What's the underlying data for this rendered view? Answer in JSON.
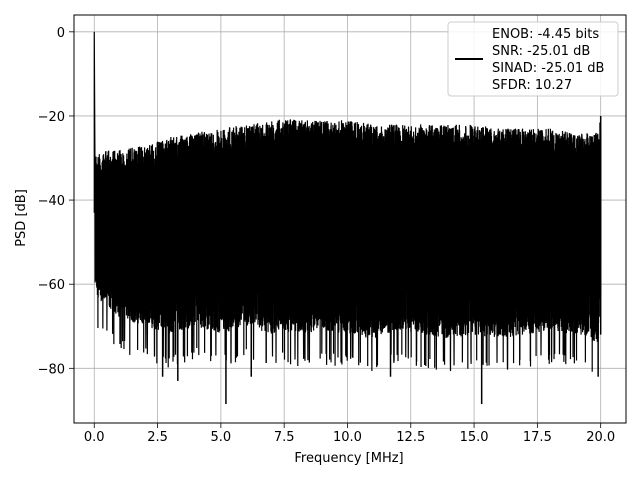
{
  "chart_data": {
    "type": "line",
    "title": "",
    "xlabel": "Frequency [MHz]",
    "ylabel": "PSD [dB]",
    "xlim": [
      -0.8,
      21.0
    ],
    "ylim": [
      -93,
      4
    ],
    "xticks": [
      0.0,
      2.5,
      5.0,
      7.5,
      10.0,
      12.5,
      15.0,
      17.5,
      20.0
    ],
    "xtick_labels": [
      "0.0",
      "2.5",
      "5.0",
      "7.5",
      "10.0",
      "12.5",
      "15.0",
      "17.5",
      "20.0"
    ],
    "yticks": [
      0,
      -20,
      -40,
      -60,
      -80
    ],
    "ytick_labels": [
      "0",
      "−20",
      "−40",
      "−60",
      "−80"
    ],
    "grid": true,
    "legend_position": "top-right",
    "line_color": "#000000",
    "series": [
      {
        "values_description_free": true,
        "noise_floor_envelope": {
          "x": [
            0.0,
            0.25,
            0.5,
            1.0,
            2.0,
            3.0,
            4.0,
            5.0,
            6.0,
            7.0,
            7.5,
            8.0,
            9.0,
            10.0,
            11.0,
            12.0,
            13.0,
            14.0,
            15.0,
            16.0,
            17.0,
            18.0,
            19.0,
            19.9,
            20.0
          ],
          "upper": [
            -29,
            -29,
            -28,
            -28,
            -27,
            -25,
            -24,
            -23,
            -22,
            -21,
            -20.5,
            -21,
            -21,
            -21,
            -22,
            -22,
            -22,
            -22,
            -22,
            -23,
            -23,
            -23,
            -24,
            -24,
            -20
          ],
          "lower": [
            -70,
            -72,
            -73,
            -76,
            -78,
            -80,
            -78,
            -80,
            -78,
            -80,
            -79,
            -80,
            -79,
            -80,
            -81,
            -79,
            -80,
            -81,
            -80,
            -81,
            -80,
            -79,
            -80,
            -82,
            -72
          ]
        },
        "peak": {
          "x": 0.0,
          "y": 0
        },
        "deep_dips": [
          {
            "x": 2.7,
            "y": -82
          },
          {
            "x": 3.3,
            "y": -83
          },
          {
            "x": 5.2,
            "y": -88.5
          },
          {
            "x": 6.2,
            "y": -82
          },
          {
            "x": 11.7,
            "y": -82
          },
          {
            "x": 15.3,
            "y": -88.5
          },
          {
            "x": 19.9,
            "y": -82
          }
        ]
      }
    ]
  },
  "legend": {
    "lines": [
      "ENOB: -4.45 bits",
      "SNR: -25.01 dB",
      "SINAD: -25.01 dB",
      "SFDR: 10.27"
    ]
  }
}
